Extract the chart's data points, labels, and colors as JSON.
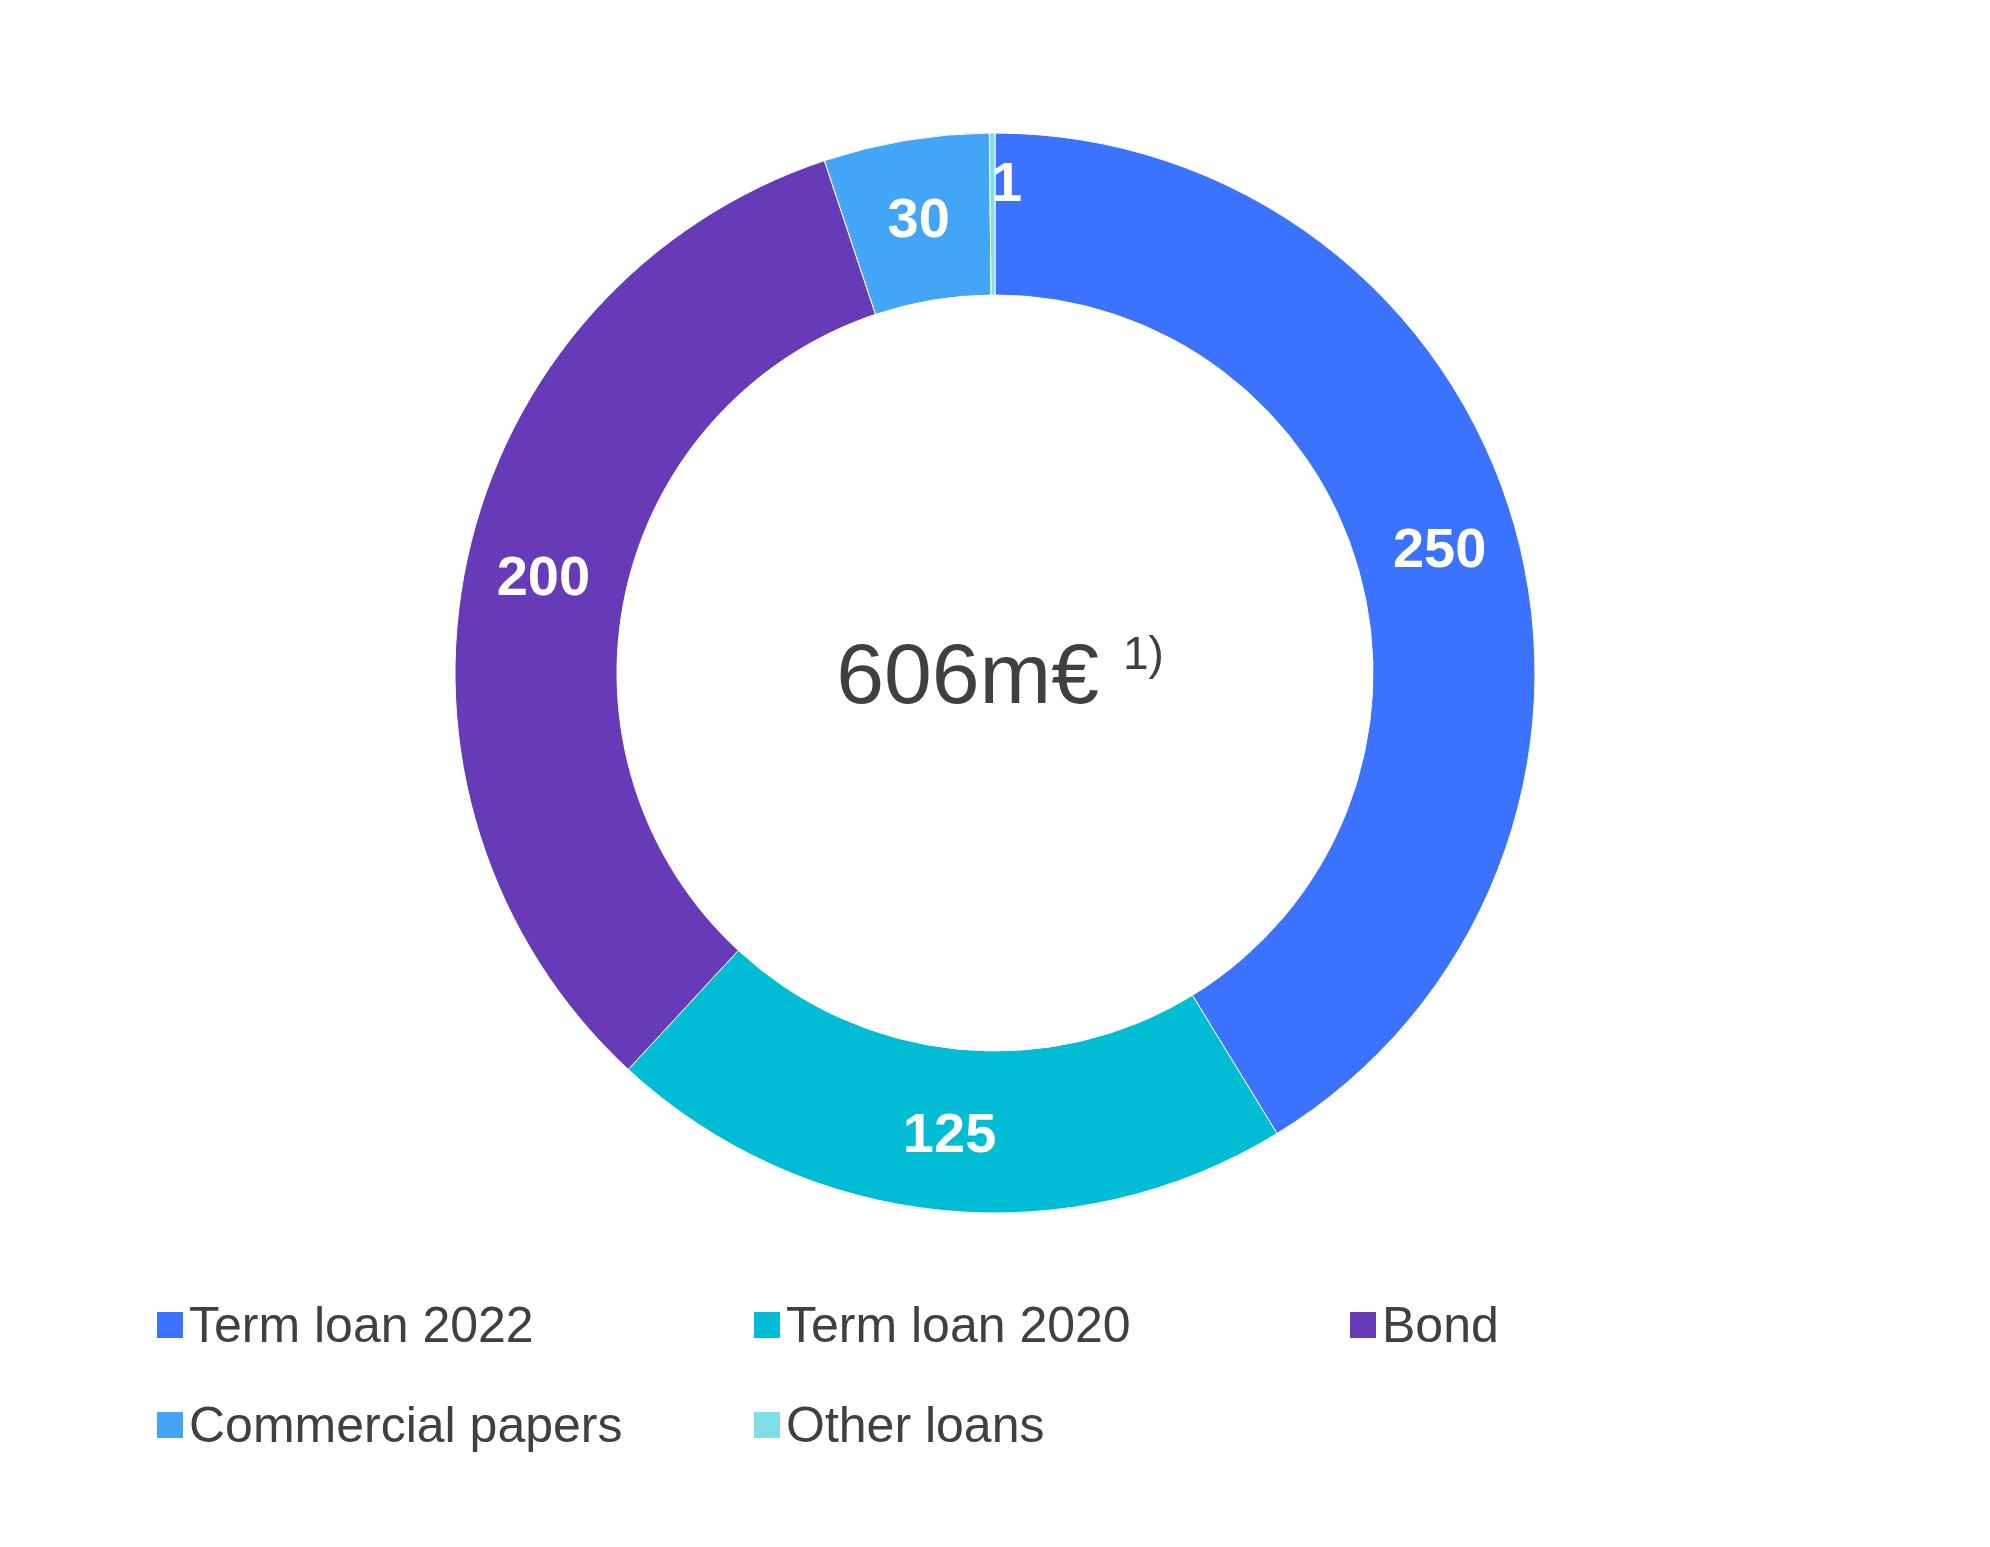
{
  "chart_data": {
    "type": "donut",
    "title": "606m€ $^{1)}$",
    "categories": [
      "Term loan 2022",
      "Term loan 2020",
      "Bond",
      "Commercial papers",
      "Other loans"
    ],
    "values": [
      250,
      125,
      200,
      30,
      1
    ],
    "colors": [
      "#3b73ff",
      "#00bcd4",
      "#673ab7",
      "#42a5f5",
      "#80deea"
    ],
    "data_labels": true,
    "legend": "bottom"
  }
}
